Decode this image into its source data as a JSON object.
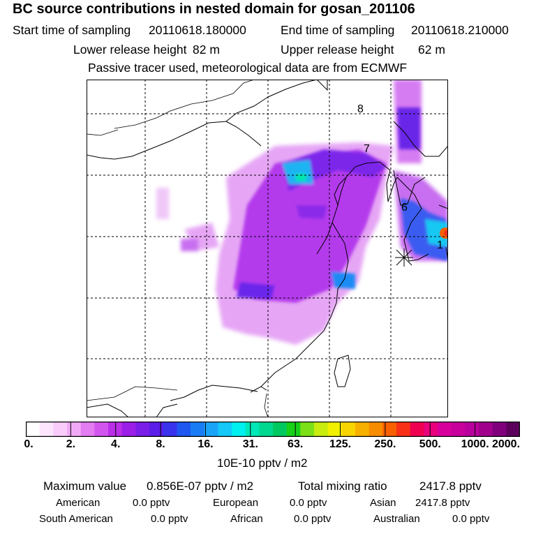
{
  "title": "BC  source contributions in nested domain for gosan_201106",
  "header": {
    "start_label": "Start time of sampling",
    "start_value": "20110618.180000",
    "end_label": "End time of sampling",
    "end_value": "20110618.210000",
    "lower_label": "Lower release height",
    "lower_value": "82 m",
    "upper_label": "Upper release height",
    "upper_value": "62 m",
    "note": "Passive tracer used, meteorological data are from ECMWF"
  },
  "map": {
    "trajectory_labels": [
      "8",
      "7",
      "6",
      "1"
    ]
  },
  "colorbar": {
    "ticks": [
      "0.",
      "2.",
      "4.",
      "8.",
      "16.",
      "31.",
      "63.",
      "125.",
      "250.",
      "500.",
      "1000.",
      "2000."
    ],
    "unit": "10E-10 pptv / m2",
    "colors": [
      "#ffffff",
      "#fde6fd",
      "#f9ccfb",
      "#f2aaf8",
      "#e47cf2",
      "#d256ee",
      "#bb2ee8",
      "#9c1fe8",
      "#7a1ee8",
      "#5a1ee8",
      "#3a33ee",
      "#1f57f0",
      "#1a7cf5",
      "#1aa4f8",
      "#14c8f8",
      "#00f0f0",
      "#00e8b8",
      "#00d890",
      "#00c860",
      "#18d018",
      "#7ce018",
      "#c8ec10",
      "#f0f000",
      "#f8d400",
      "#f8b000",
      "#f88c00",
      "#f86000",
      "#f83018",
      "#f00050",
      "#e8007c",
      "#d8009c",
      "#c8009c",
      "#b8009c",
      "#a0008c",
      "#80007c",
      "#5c005c"
    ]
  },
  "stats": {
    "max_label": "Maximum value",
    "max_value": "0.856E-07 pptv / m2",
    "total_label": "Total mixing ratio",
    "total_value": "2417.8 pptv",
    "regions": [
      {
        "name": "American",
        "value": "0.0 pptv"
      },
      {
        "name": "European",
        "value": "0.0 pptv"
      },
      {
        "name": "Asian",
        "value": "2417.8 pptv"
      },
      {
        "name": "South American",
        "value": "0.0 pptv"
      },
      {
        "name": "African",
        "value": "0.0 pptv"
      },
      {
        "name": "Australian",
        "value": "0.0 pptv"
      }
    ]
  }
}
